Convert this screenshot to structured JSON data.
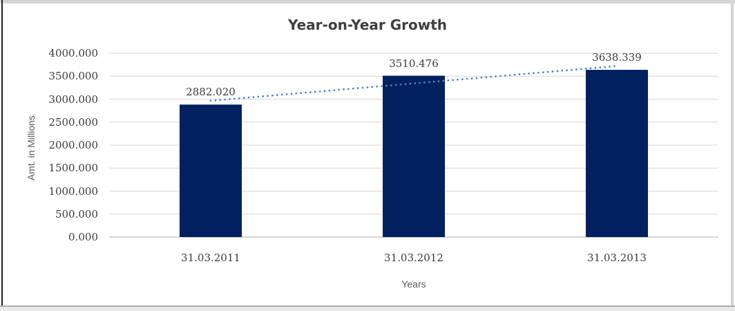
{
  "chart_data": {
    "type": "bar",
    "title": "Year-on-Year Growth",
    "xlabel": "Years",
    "ylabel": "Amt. in Millions",
    "categories": [
      "31.03.2011",
      "31.03.2012",
      "31.03.2013"
    ],
    "values": [
      2882.02,
      3510.476,
      3638.339
    ],
    "values_display": [
      "2882.020",
      "3510.476",
      "3638.339"
    ],
    "ylim": [
      0,
      4000
    ],
    "ytick_step": 500,
    "ytick_labels": [
      "0.000",
      "500.000",
      "1000.000",
      "1500.000",
      "2000.000",
      "2500.000",
      "3000.000",
      "3500.000",
      "4000.000"
    ],
    "grid": true,
    "legend": "none",
    "bar_color": "#002060",
    "gridline_color": "#d6d6d6",
    "zero_line_color": "#c6c6c6",
    "title_color": "#3f3f3f",
    "tick_label_color": "#3b3b3b",
    "axis_title_color": "#595959",
    "trendline": {
      "type": "linear",
      "style": "dotted",
      "color": "#4a86c8",
      "endpoints_y": [
        2965.5,
        3721.8
      ]
    }
  }
}
